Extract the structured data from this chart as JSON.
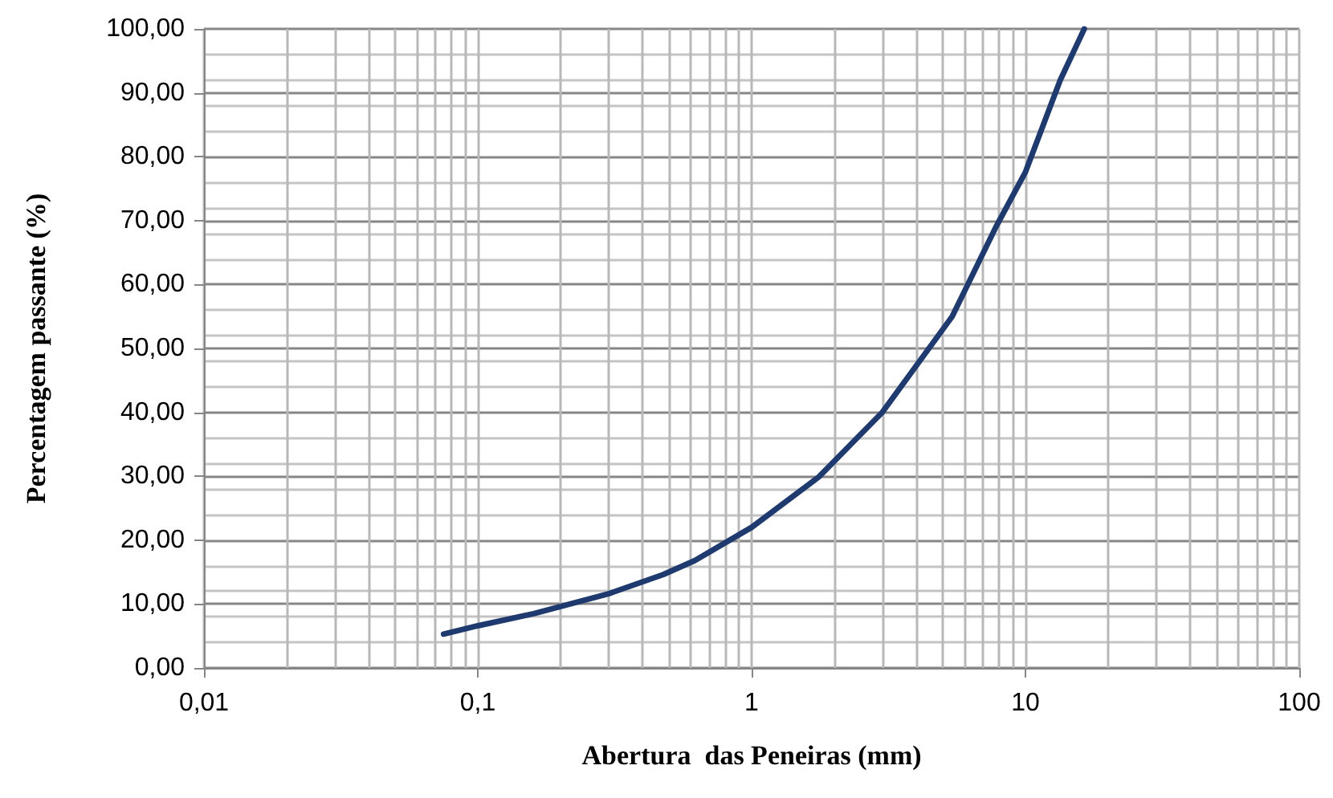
{
  "chart_data": {
    "type": "line",
    "xlabel": "Abertura  das Peneiras (mm)",
    "ylabel": "Percentagem passante (%)",
    "log": "x",
    "grid": true,
    "marker": "none",
    "line_style": "solid",
    "xlim": [
      0.01,
      100
    ],
    "xticks": [
      {
        "value": 0.01,
        "label": "0,01"
      },
      {
        "value": 0.1,
        "label": "0,1"
      },
      1,
      10,
      100
    ],
    "ylim": [
      0,
      100
    ],
    "yticks": [
      {
        "value": 0,
        "label": "0,00"
      },
      {
        "value": 10,
        "label": "10,00"
      },
      {
        "value": 20,
        "label": "20,00"
      },
      {
        "value": 30,
        "label": "30,00"
      },
      {
        "value": 40,
        "label": "40,00"
      },
      {
        "value": 50,
        "label": "50,00"
      },
      {
        "value": 60,
        "label": "60,00"
      },
      {
        "value": 70,
        "label": "70,00"
      },
      {
        "value": 80,
        "label": "80,00"
      },
      {
        "value": 90,
        "label": "90,00"
      },
      {
        "value": 100,
        "label": "100,00"
      }
    ],
    "series": [
      {
        "color": "#1f3a6e",
        "x": [
          0.075,
          0.1,
          0.16,
          0.3,
          0.475,
          0.62,
          1.0,
          1.76,
          3.0,
          5.4,
          7.8,
          10,
          13.4,
          16.4
        ],
        "values": [
          5.3,
          6.6,
          8.5,
          11.6,
          14.6,
          16.8,
          22,
          29.9,
          40,
          55,
          69,
          77.6,
          92,
          100
        ]
      }
    ]
  }
}
